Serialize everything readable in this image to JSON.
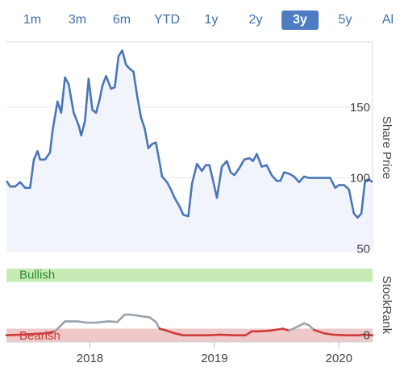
{
  "tabs": [
    {
      "label": "1m",
      "active": false
    },
    {
      "label": "3m",
      "active": false
    },
    {
      "label": "6m",
      "active": false
    },
    {
      "label": "YTD",
      "active": false
    },
    {
      "label": "1y",
      "active": false
    },
    {
      "label": "2y",
      "active": false
    },
    {
      "label": "3y",
      "active": true
    },
    {
      "label": "5y",
      "active": false
    },
    {
      "label": "Al",
      "active": false
    }
  ],
  "colors": {
    "price_line": "#4a76b8",
    "price_fill": "#f1f4fa",
    "bullish_band": "#c6ebb5",
    "bearish_band": "#efc9c9",
    "bullish_text": "#2e8b2e",
    "bearish_text": "#c0392b",
    "rank_bearish_line": "#cf3b3b",
    "rank_neutral_line": "#9aa2ad",
    "tab_active_bg": "#4e7cc2",
    "tab_text": "#3f6fb0"
  },
  "chart_data": [
    {
      "type": "line",
      "ylabel": "Share Price",
      "ylim": [
        48,
        196
      ],
      "xlim": [
        2017.33,
        2020.27
      ],
      "yticks": [
        50,
        100,
        150
      ],
      "xticks": [
        {
          "value": 2018.0,
          "label": "2018"
        },
        {
          "value": 2019.0,
          "label": "2019"
        },
        {
          "value": 2020.0,
          "label": "2020"
        }
      ],
      "grid": true,
      "x": [
        2017.33,
        2017.36,
        2017.4,
        2017.44,
        2017.48,
        2017.52,
        2017.55,
        2017.58,
        2017.6,
        2017.64,
        2017.68,
        2017.7,
        2017.74,
        2017.77,
        2017.8,
        2017.83,
        2017.87,
        2017.91,
        2017.93,
        2017.96,
        2017.99,
        2018.02,
        2018.05,
        2018.08,
        2018.1,
        2018.13,
        2018.17,
        2018.2,
        2018.23,
        2018.26,
        2018.29,
        2018.32,
        2018.35,
        2018.38,
        2018.41,
        2018.44,
        2018.47,
        2018.5,
        2018.53,
        2018.56,
        2018.58,
        2018.62,
        2018.65,
        2018.68,
        2018.72,
        2018.75,
        2018.79,
        2018.82,
        2018.86,
        2018.9,
        2018.93,
        2018.96,
        2018.99,
        2019.02,
        2019.06,
        2019.1,
        2019.13,
        2019.16,
        2019.2,
        2019.24,
        2019.28,
        2019.31,
        2019.34,
        2019.38,
        2019.42,
        2019.46,
        2019.5,
        2019.53,
        2019.56,
        2019.6,
        2019.64,
        2019.68,
        2019.72,
        2019.76,
        2019.8,
        2019.84,
        2019.88,
        2019.93,
        2019.97,
        2020.0,
        2020.04,
        2020.08,
        2020.12,
        2020.15,
        2020.18,
        2020.21,
        2020.24,
        2020.27
      ],
      "series": [
        {
          "values": [
            98,
            94,
            94,
            97,
            93,
            93,
            113,
            119,
            113,
            113,
            118,
            133,
            154,
            146,
            171,
            166,
            146,
            137,
            130,
            140,
            170,
            148,
            146,
            156,
            165,
            172,
            163,
            164,
            186,
            190,
            180,
            177,
            175,
            158,
            143,
            135,
            121,
            124,
            125,
            111,
            101,
            97,
            92,
            86,
            80,
            74,
            73,
            96,
            110,
            105,
            109,
            109,
            98,
            86,
            108,
            112,
            104,
            102,
            107,
            113,
            114,
            112,
            117,
            108,
            109,
            102,
            98,
            98,
            104,
            103,
            101,
            97,
            101,
            100,
            100,
            100,
            100,
            100,
            93,
            95,
            95,
            92,
            75,
            72,
            75,
            98,
            99,
            97
          ]
        }
      ]
    },
    {
      "type": "line",
      "ylabel": "StockRank",
      "yticks": [
        0
      ],
      "ylim": [
        -10,
        100
      ],
      "zones": [
        {
          "label": "Bullish",
          "from": 80,
          "to": 100
        },
        {
          "label": "Bearish",
          "from": -10,
          "to": 10
        }
      ],
      "x": [
        2017.33,
        2017.45,
        2017.55,
        2017.65,
        2017.72,
        2017.8,
        2017.9,
        2017.97,
        2018.05,
        2018.15,
        2018.22,
        2018.28,
        2018.33,
        2018.4,
        2018.48,
        2018.53,
        2018.56,
        2018.6,
        2018.68,
        2018.75,
        2018.85,
        2018.95,
        2019.05,
        2019.15,
        2019.25,
        2019.3,
        2019.35,
        2019.45,
        2019.55,
        2019.6,
        2019.68,
        2019.72,
        2019.76,
        2019.8,
        2019.88,
        2019.95,
        2020.05,
        2020.15,
        2020.2,
        2020.27
      ],
      "series": [
        {
          "values": [
            0,
            1,
            2,
            3,
            6,
            21,
            21,
            19,
            19,
            21,
            20,
            31,
            31,
            29,
            27,
            20,
            10,
            8,
            3,
            0,
            0,
            0,
            1,
            0,
            0,
            6,
            6,
            7,
            10,
            7,
            14,
            18,
            15,
            8,
            3,
            1,
            0,
            0,
            1,
            0
          ]
        }
      ]
    }
  ]
}
